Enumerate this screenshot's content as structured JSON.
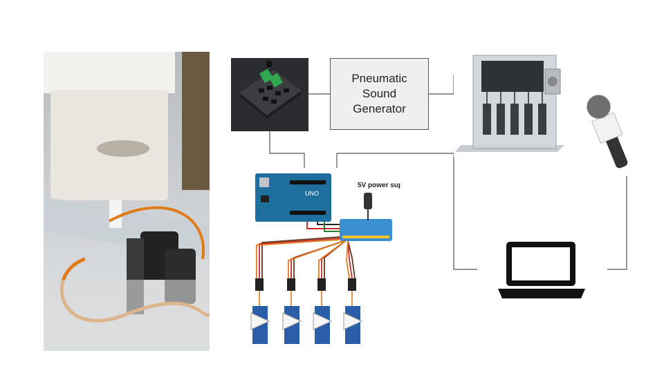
{
  "diagram": {
    "sound_generator_label": "Pneumatic\nSound\nGenerator",
    "power_supply_label": "5V power supply",
    "arduino_board_text": "UNO",
    "nodes": [
      {
        "id": "prototype-photo",
        "kind": "photo"
      },
      {
        "id": "servo-driver-board",
        "kind": "image"
      },
      {
        "id": "pneumatic-sound-generator",
        "kind": "box"
      },
      {
        "id": "cad-model",
        "kind": "image"
      },
      {
        "id": "microphone",
        "kind": "icon"
      },
      {
        "id": "wiring-diagram",
        "kind": "image"
      },
      {
        "id": "laptop",
        "kind": "icon"
      }
    ],
    "edges": [
      [
        "servo-driver-board",
        "pneumatic-sound-generator"
      ],
      [
        "pneumatic-sound-generator",
        "cad-model"
      ],
      [
        "servo-driver-board",
        "wiring-diagram"
      ],
      [
        "wiring-diagram",
        "laptop"
      ],
      [
        "microphone",
        "laptop"
      ]
    ]
  },
  "colors": {
    "line": "#555555",
    "arduino": "#1f6f9e",
    "pca_board": "#3a8fd0",
    "servo_blue": "#2a5ea8",
    "wire_orange": "#e07b1a",
    "wire_red": "#c62828",
    "wire_brown": "#5a3a1e"
  }
}
